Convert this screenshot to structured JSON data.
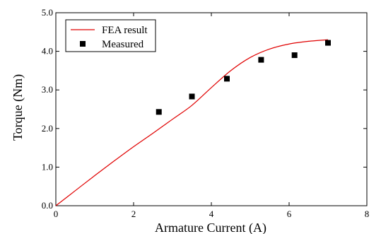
{
  "chart_data": {
    "type": "line",
    "title": "",
    "xlabel": "Armature Current (A)",
    "ylabel": "Torque (Nm)",
    "xlim": [
      0,
      8
    ],
    "ylim": [
      0,
      5
    ],
    "grid": false,
    "legend_position": "top-left",
    "x_ticks": [
      "0",
      "2",
      "4",
      "6",
      "8"
    ],
    "y_ticks": [
      "0.0",
      "1.0",
      "2.0",
      "3.0",
      "4.0",
      "5.0"
    ],
    "series": [
      {
        "name": "FEA result",
        "style": "line",
        "color": "#e00000",
        "x": [
          0,
          0.5,
          1.0,
          1.5,
          2.0,
          2.5,
          3.0,
          3.5,
          4.0,
          4.5,
          5.0,
          5.5,
          6.0,
          6.5,
          7.0
        ],
        "y": [
          0.0,
          0.39,
          0.78,
          1.16,
          1.53,
          1.88,
          2.24,
          2.6,
          3.06,
          3.5,
          3.84,
          4.06,
          4.19,
          4.26,
          4.3
        ]
      },
      {
        "name": "Measured",
        "style": "marker",
        "color": "#000000",
        "x": [
          2.65,
          3.5,
          4.4,
          5.28,
          6.14,
          7.0
        ],
        "y": [
          2.43,
          2.83,
          3.29,
          3.78,
          3.9,
          4.22
        ]
      }
    ]
  }
}
